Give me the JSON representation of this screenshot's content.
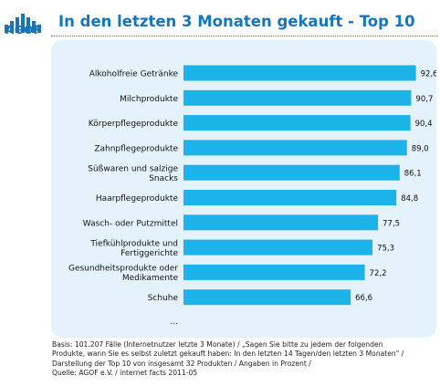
{
  "brand": {
    "name": "AGOF",
    "color": "#1a75b8"
  },
  "chart_data": {
    "type": "bar",
    "orientation": "horizontal",
    "title": "In den letzten 3 Monaten gekauft - Top 10",
    "categories": [
      [
        "Alkoholfreie Getränke"
      ],
      [
        "Milchprodukte"
      ],
      [
        "Körperpflegeprodukte"
      ],
      [
        "Zahnpflegeprodukte"
      ],
      [
        "Süßwaren und salzige",
        "Snacks"
      ],
      [
        "Haarpflegeprodukte"
      ],
      [
        "Wasch- oder Putzmittel"
      ],
      [
        "Tiefkühlprodukte und",
        "Fertiggerichte"
      ],
      [
        "Gesundheitsprodukte oder",
        "Medikamente"
      ],
      [
        "Schuhe"
      ]
    ],
    "values": [
      92.6,
      90.7,
      90.4,
      89.0,
      86.1,
      84.8,
      77.5,
      75.3,
      72.2,
      66.6
    ],
    "value_labels": [
      "92,6",
      "90,7",
      "90,4",
      "89,0",
      "86,1",
      "84,8",
      "77,5",
      "75,3",
      "72,2",
      "66,6"
    ],
    "trailing_label": "...",
    "xlim": [
      0,
      100
    ],
    "grid": false,
    "bar_color": "#1cb4e8",
    "panel_color": "#e4f2fb"
  },
  "footnote": [
    "Basis: 101.207 Fälle (Internetnutzer letzte 3 Monate) / „Sagen Sie bitte zu jedem der folgenden",
    "Produkte, wann Sie es selbst zuletzt gekauft haben: In den letzten 14 Tagen/den letzten 3 Monaten\" /",
    "Darstellung der Top 10 von insgesamt 32 Produkten / Angaben in Prozent /",
    "Quelle: AGOF e.V. / internet facts 2011-05"
  ]
}
